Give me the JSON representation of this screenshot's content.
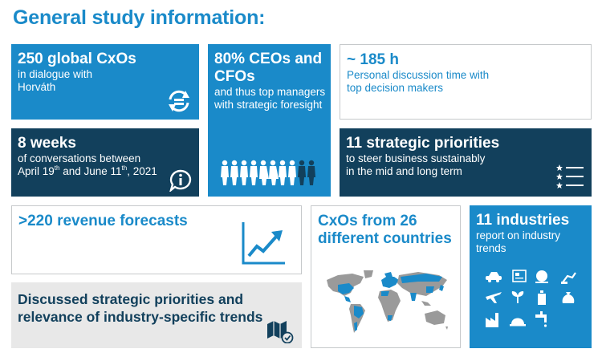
{
  "title": "General study information:",
  "tiles": {
    "cxos": {
      "headline": "250 global CxOs",
      "line1": "in dialogue with",
      "line2": "Horváth",
      "icon": "refresh-cycle-icon"
    },
    "weeks": {
      "headline": "8 weeks",
      "line1": "of conversations between",
      "date_a": "April 19",
      "date_a_sup": "th",
      "date_mid": " and June 11",
      "date_b_sup": "th",
      "date_end": ", 2021",
      "icon": "info-bubble-icon"
    },
    "ceos": {
      "headline_1": "80% CEOs and",
      "headline_2": "CFOs",
      "line1": "and thus top managers",
      "line2": "with strategic foresight",
      "icon": "people-row-icon"
    },
    "hours": {
      "headline": "~ 185 h",
      "line1": "Personal discussion time with",
      "line2": "top decision makers"
    },
    "priorities": {
      "headline": "11 strategic priorities",
      "line1": "to steer business sustainably",
      "line2": "in the mid and long term",
      "icon": "star-list-icon"
    },
    "forecasts": {
      "headline": ">220 revenue forecasts",
      "icon": "trend-up-chart-icon"
    },
    "discussed": {
      "line1": "Discussed strategic priorities and",
      "line2": "relevance of industry-specific trends",
      "icon": "map-check-icon"
    },
    "countries": {
      "headline_1": "CxOs from 26",
      "headline_2": "different countries",
      "icon": "world-map-icon"
    },
    "industries": {
      "headline": "11 industries",
      "line1": "report on industry",
      "line2": "trends",
      "icon": "industry-icons-grid"
    }
  },
  "colors": {
    "blue": "#1a8ac9",
    "navy": "#12405c",
    "grey": "#e8e8e8",
    "border": "#c6c9cb",
    "map_grey": "#9a9a9a"
  }
}
